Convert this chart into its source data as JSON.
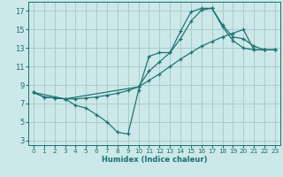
{
  "xlabel": "Humidex (Indice chaleur)",
  "bg_color": "#cce8e8",
  "grid_color": "#aacccc",
  "line_color": "#1a7070",
  "xlim": [
    -0.5,
    23.5
  ],
  "ylim": [
    2.5,
    18.0
  ],
  "xticks": [
    0,
    1,
    2,
    3,
    4,
    5,
    6,
    7,
    8,
    9,
    10,
    11,
    12,
    13,
    14,
    15,
    16,
    17,
    18,
    19,
    20,
    21,
    22,
    23
  ],
  "yticks": [
    3,
    5,
    7,
    9,
    11,
    13,
    15,
    17
  ],
  "line1_x": [
    0,
    1,
    2,
    3,
    4,
    5,
    6,
    7,
    8,
    9,
    10,
    11,
    12,
    13,
    14,
    15,
    16,
    17,
    18,
    19,
    20,
    21,
    22,
    23
  ],
  "line1_y": [
    8.2,
    7.7,
    7.6,
    7.5,
    6.8,
    6.5,
    5.8,
    5.0,
    3.9,
    3.7,
    8.4,
    12.1,
    12.5,
    12.5,
    14.8,
    16.9,
    17.3,
    17.3,
    15.3,
    13.8,
    13.0,
    12.8,
    12.8,
    12.8
  ],
  "line2_x": [
    0,
    1,
    2,
    3,
    4,
    5,
    6,
    7,
    8,
    9,
    10,
    11,
    12,
    13,
    14,
    15,
    16,
    17,
    18,
    19,
    20,
    21,
    22,
    23
  ],
  "line2_y": [
    8.2,
    7.7,
    7.6,
    7.5,
    7.5,
    7.6,
    7.7,
    7.9,
    8.1,
    8.4,
    8.8,
    9.5,
    10.2,
    11.0,
    11.8,
    12.5,
    13.2,
    13.7,
    14.2,
    14.6,
    15.0,
    12.8,
    12.8,
    12.8
  ],
  "line3_x": [
    0,
    3,
    10,
    11,
    12,
    13,
    14,
    15,
    16,
    17,
    18,
    19,
    20,
    21,
    22,
    23
  ],
  "line3_y": [
    8.2,
    7.5,
    8.8,
    10.5,
    11.5,
    12.5,
    14.0,
    15.9,
    17.1,
    17.3,
    15.5,
    14.2,
    14.0,
    13.2,
    12.8,
    12.8
  ]
}
